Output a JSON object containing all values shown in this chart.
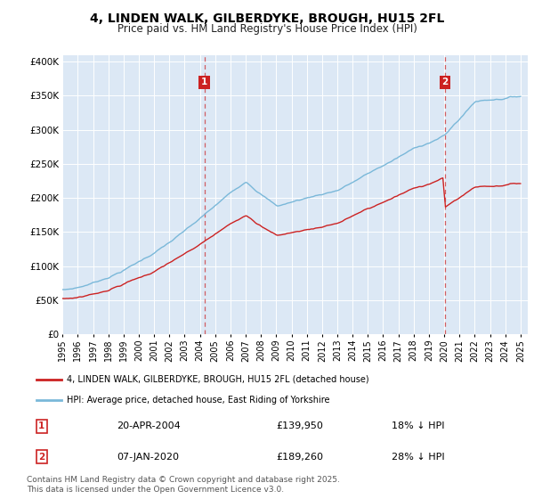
{
  "title": "4, LINDEN WALK, GILBERDYKE, BROUGH, HU15 2FL",
  "subtitle": "Price paid vs. HM Land Registry's House Price Index (HPI)",
  "hpi_color": "#7ab8d9",
  "property_color": "#cc2222",
  "marker1_date": "20-APR-2004",
  "marker1_price": 139950,
  "marker1_hpi_pct": "18% ↓ HPI",
  "marker2_date": "07-JAN-2020",
  "marker2_price": 189260,
  "marker2_hpi_pct": "28% ↓ HPI",
  "legend_property": "4, LINDEN WALK, GILBERDYKE, BROUGH, HU15 2FL (detached house)",
  "legend_hpi": "HPI: Average price, detached house, East Riding of Yorkshire",
  "footer": "Contains HM Land Registry data © Crown copyright and database right 2025.\nThis data is licensed under the Open Government Licence v3.0.",
  "ylim": [
    0,
    410000
  ],
  "yticks": [
    0,
    50000,
    100000,
    150000,
    200000,
    250000,
    300000,
    350000,
    400000
  ],
  "background_color": "#dce8f5",
  "xstart": 1995,
  "xend": 2025,
  "marker1_year": 2004.29,
  "marker2_year": 2020.04
}
